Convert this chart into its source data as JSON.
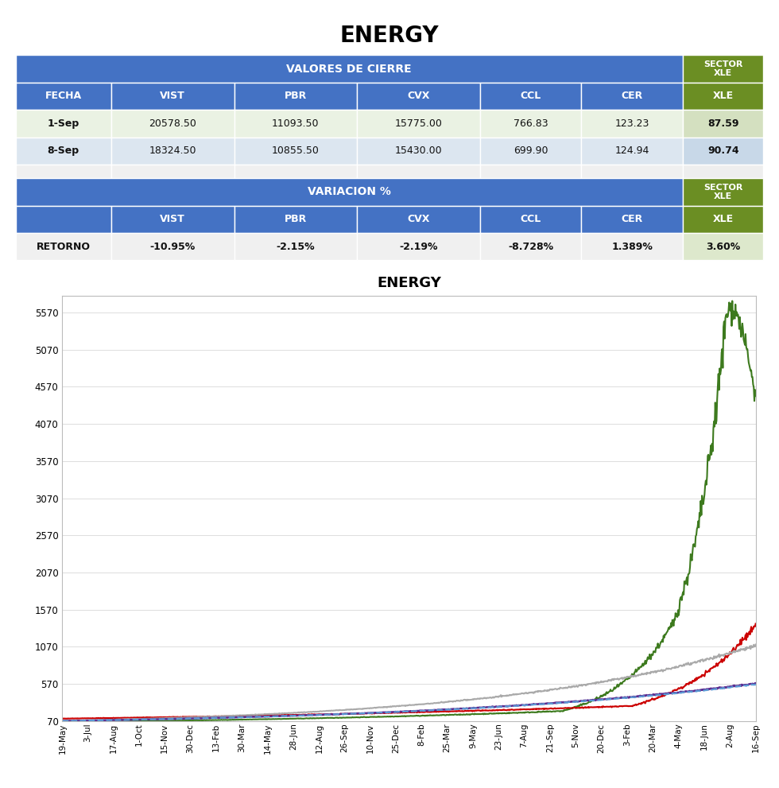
{
  "title": "ENERGY",
  "table1_header_blue": [
    "FECHA",
    "VIST",
    "PBR",
    "CVX",
    "CCL",
    "CER"
  ],
  "table1_title": "VALORES DE CIERRE",
  "table1_rows": [
    [
      "1-Sep",
      "20578.50",
      "11093.50",
      "15775.00",
      "766.83",
      "123.23",
      "87.59"
    ],
    [
      "8-Sep",
      "18324.50",
      "10855.50",
      "15430.00",
      "699.90",
      "124.94",
      "90.74"
    ]
  ],
  "table2_title": "VARIACION %",
  "table2_row_label": "RETORNO",
  "table2_row": [
    "-10.95%",
    "-2.15%",
    "-2.19%",
    "-8.728%",
    "1.389%",
    "3.60%"
  ],
  "chart_title": "ENERGY",
  "x_labels": [
    "19-May",
    "3-Jul",
    "17-Aug",
    "1-Oct",
    "15-Nov",
    "30-Dec",
    "13-Feb",
    "30-Mar",
    "14-May",
    "28-Jun",
    "12-Aug",
    "26-Sep",
    "10-Nov",
    "25-Dec",
    "8-Feb",
    "25-Mar",
    "9-May",
    "23-Jun",
    "7-Aug",
    "21-Sep",
    "5-Nov",
    "20-Dec",
    "3-Feb",
    "20-Mar",
    "4-May",
    "18-Jun",
    "2-Aug",
    "16-Sep"
  ],
  "y_ticks": [
    70,
    570,
    1070,
    1570,
    2070,
    2570,
    3070,
    3570,
    4070,
    4570,
    5070,
    5570
  ],
  "color_VIST": "#3d7a1e",
  "color_PBR": "#cc0000",
  "color_CVX": "#aaaaaa",
  "color_CCL": "#5c2d91",
  "color_CER": "#5b9bd5",
  "blue_header": "#4472c4",
  "green_header": "#6b8e23",
  "row1_bg": "#eaf2e3",
  "row2_bg": "#dce6f0",
  "empty_row_bg": "#f2f2f2",
  "retorno_bg": "#f0f0f0",
  "green_cell_row1": "#d4e0c0",
  "green_cell_row2": "#c8d8e8",
  "green_cell_retorno": "#dde8cc"
}
